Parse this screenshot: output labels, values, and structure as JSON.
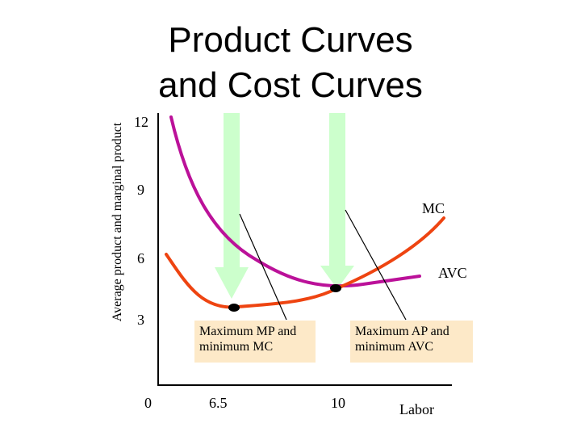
{
  "chart_data": {
    "type": "line",
    "title": [
      "Product Curves",
      "and Cost Curves"
    ],
    "ylabel": "Average product and marginal product",
    "xlabel": "Labor",
    "x_ticks": [
      "0",
      "6.5",
      "10"
    ],
    "y_ticks": [
      "3",
      "6",
      "9",
      "12"
    ],
    "series": [
      {
        "name": "MC",
        "color": "#ee4411"
      },
      {
        "name": "AVC",
        "color": "#bb1199"
      }
    ],
    "annotations": [
      {
        "lines": [
          "Maximum MP and",
          "minimum MC"
        ]
      },
      {
        "lines": [
          "Maximum AP and",
          "minimum AVC"
        ]
      }
    ],
    "arrow_color": "#ccffcc",
    "point_color": "#000000"
  }
}
